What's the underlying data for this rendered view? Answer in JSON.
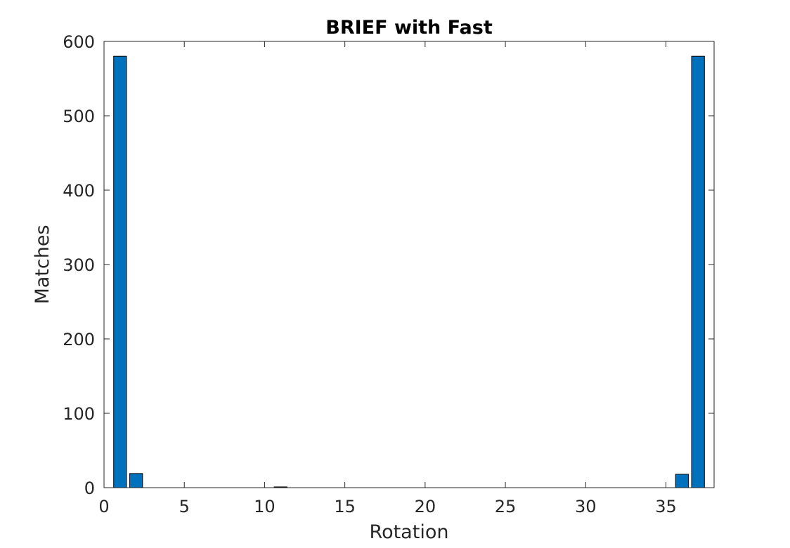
{
  "chart_data": {
    "type": "bar",
    "title": "BRIEF with Fast",
    "xlabel": "Rotation",
    "ylabel": "Matches",
    "x": [
      1,
      2,
      3,
      4,
      5,
      6,
      7,
      8,
      9,
      10,
      11,
      12,
      13,
      14,
      15,
      16,
      17,
      18,
      19,
      20,
      21,
      22,
      23,
      24,
      25,
      26,
      27,
      28,
      29,
      30,
      31,
      32,
      33,
      34,
      35,
      36,
      37
    ],
    "values": [
      580,
      19,
      0,
      0,
      0,
      0,
      0,
      0,
      0,
      0,
      1,
      0,
      0,
      0,
      0,
      0,
      0,
      0,
      0,
      0,
      0,
      0,
      0,
      0,
      0,
      0,
      0,
      0,
      0,
      0,
      0,
      0,
      0,
      0,
      0,
      18,
      580
    ],
    "xlim": [
      0,
      38
    ],
    "ylim": [
      0,
      600
    ],
    "xticks": [
      0,
      5,
      10,
      15,
      20,
      25,
      30,
      35
    ],
    "yticks": [
      0,
      100,
      200,
      300,
      400,
      500,
      600
    ],
    "bar_color": "#0072BD",
    "grid": false,
    "legend": "none"
  }
}
